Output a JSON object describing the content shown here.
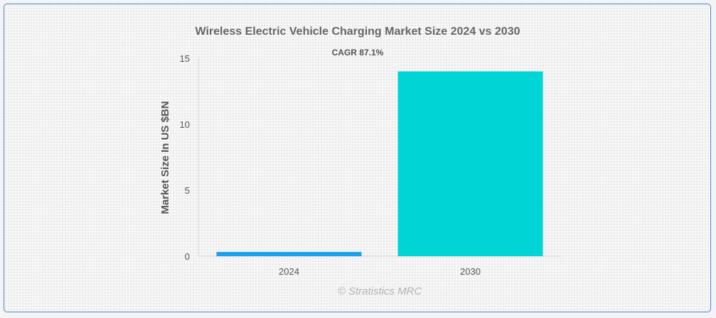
{
  "chart_data": {
    "type": "bar",
    "title": "Wireless Electric Vehicle Charging Market Size 2024 vs 2030",
    "subtitle": "CAGR 87.1%",
    "xlabel": "",
    "ylabel": "Market Size In US $BN",
    "categories": [
      "2024",
      "2030"
    ],
    "values": [
      0.33,
      14.0
    ],
    "colors": [
      "#1ba1e8",
      "#00d4d4"
    ],
    "ylim": [
      0,
      15
    ],
    "yticks": [
      0,
      5,
      10,
      15
    ],
    "grid": false,
    "legend": "none"
  },
  "watermark": "© Stratistics MRC"
}
